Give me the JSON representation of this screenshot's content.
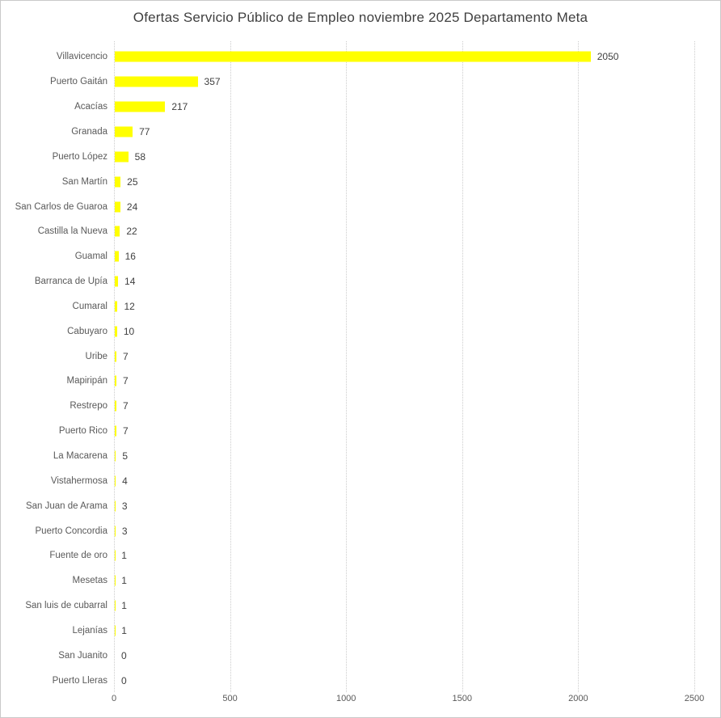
{
  "title": "Ofertas Servicio Público de Empleo noviembre 2025 Departamento Meta",
  "colors": {
    "bar": "#ffff00",
    "gridline": "#cccccc",
    "category_label": "#595959",
    "value_label": "#404040",
    "tick_label": "#595959",
    "title": "#3f3f3f",
    "frame_border": "#c9c9c9",
    "background": "#ffffff"
  },
  "chart_data": {
    "type": "bar",
    "orientation": "horizontal",
    "title": "Ofertas Servicio Público de Empleo noviembre 2025 Departamento Meta",
    "categories": [
      "Villavicencio",
      "Puerto Gaitán",
      "Acacías",
      "Granada",
      "Puerto López",
      "San Martín",
      "San Carlos de Guaroa",
      "Castilla la Nueva",
      "Guamal",
      "Barranca de Upía",
      "Cumaral",
      "Cabuyaro",
      "Uribe",
      "Mapiripán",
      "Restrepo",
      "Puerto Rico",
      "La Macarena",
      "Vistahermosa",
      "San Juan de Arama",
      "Puerto Concordia",
      "Fuente de oro",
      "Mesetas",
      "San luis de cubarral",
      "Lejanías",
      "San Juanito",
      "Puerto Lleras"
    ],
    "values": [
      2050,
      357,
      217,
      77,
      58,
      25,
      24,
      22,
      16,
      14,
      12,
      10,
      7,
      7,
      7,
      7,
      5,
      4,
      3,
      3,
      1,
      1,
      1,
      1,
      0,
      0
    ],
    "data_labels": [
      "2050",
      "357",
      "217",
      "77",
      "58",
      "25",
      "24",
      "22",
      "16",
      "14",
      "12",
      "10",
      "7",
      "7",
      "7",
      "7",
      "5",
      "4",
      "3",
      "3",
      "1",
      "1",
      "1",
      "1",
      "0",
      "0"
    ],
    "xlabel": "",
    "ylabel": "",
    "xlim": [
      0,
      2500
    ],
    "x_ticks": [
      0,
      500,
      1000,
      1500,
      2000,
      2500
    ],
    "x_tick_labels": [
      "0",
      "500",
      "1000",
      "1500",
      "2000",
      "2500"
    ],
    "grid": "vertical dotted gridlines at each x tick",
    "legend": "none"
  }
}
